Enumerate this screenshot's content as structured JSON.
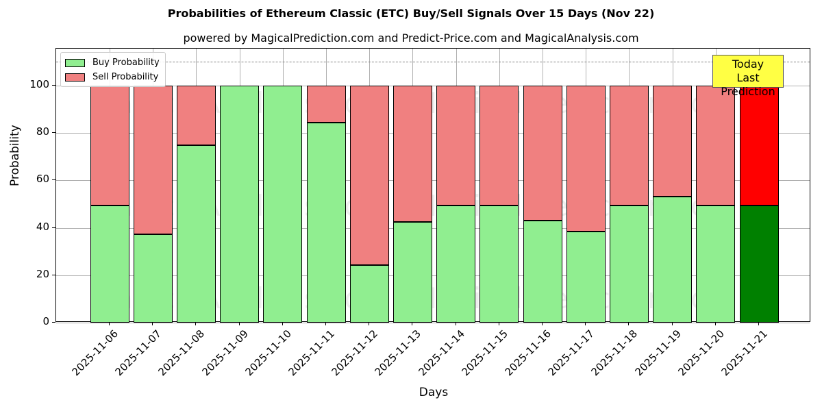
{
  "header": {
    "title": "Probabilities of Ethereum Classic (ETC) Buy/Sell Signals Over 15 Days (Nov 22)",
    "subtitle": "powered by MagicalPrediction.com and Predict-Price.com and MagicalAnalysis.com"
  },
  "axes": {
    "xlabel": "Days",
    "ylabel": "Probability",
    "yticks": [
      "0",
      "20",
      "40",
      "60",
      "80",
      "100"
    ]
  },
  "legend": {
    "buy_label": "Buy Probability",
    "sell_label": "Sell Probability"
  },
  "annotation": {
    "line1": "Today",
    "line2": "Last Prediction"
  },
  "watermarks": [
    "MagicalAnalysis.com",
    "MagicalPrediction.com"
  ],
  "colors": {
    "buy": "#90ee90",
    "sell": "#f08080",
    "buy_today": "#008000",
    "sell_today": "#ff0000",
    "annotation_bg": "#ffff44"
  },
  "chart_data": {
    "type": "bar",
    "stacked": true,
    "title": "Probabilities of Ethereum Classic (ETC) Buy/Sell Signals Over 15 Days (Nov 22)",
    "subtitle": "powered by MagicalPrediction.com and Predict-Price.com and MagicalAnalysis.com",
    "xlabel": "Days",
    "ylabel": "Probability",
    "ylim": [
      0,
      115
    ],
    "yticks": [
      0,
      20,
      40,
      60,
      80,
      100
    ],
    "grid": true,
    "legend_position": "upper left",
    "reference_line": {
      "y": 110,
      "style": "dashed",
      "color": "#808080"
    },
    "categories": [
      "2025-11-06",
      "2025-11-07",
      "2025-11-08",
      "2025-11-09",
      "2025-11-10",
      "2025-11-11",
      "2025-11-12",
      "2025-11-13",
      "2025-11-14",
      "2025-11-15",
      "2025-11-16",
      "2025-11-17",
      "2025-11-18",
      "2025-11-19",
      "2025-11-20",
      "2025-11-21"
    ],
    "series": [
      {
        "name": "Buy Probability",
        "values": [
          49.5,
          37.4,
          74.9,
          100,
          100,
          84.3,
          24.4,
          42.4,
          49.5,
          49.5,
          43.2,
          38.5,
          49.5,
          53.3,
          49.5,
          49.5
        ]
      },
      {
        "name": "Sell Probability",
        "values": [
          50.5,
          62.6,
          25.1,
          0,
          0,
          15.7,
          75.6,
          57.6,
          50.5,
          50.5,
          56.8,
          61.5,
          50.5,
          46.7,
          50.5,
          50.5
        ]
      }
    ],
    "annotations": [
      {
        "text": "Today\nLast Prediction",
        "x": "2025-11-21",
        "y": 105
      }
    ]
  }
}
